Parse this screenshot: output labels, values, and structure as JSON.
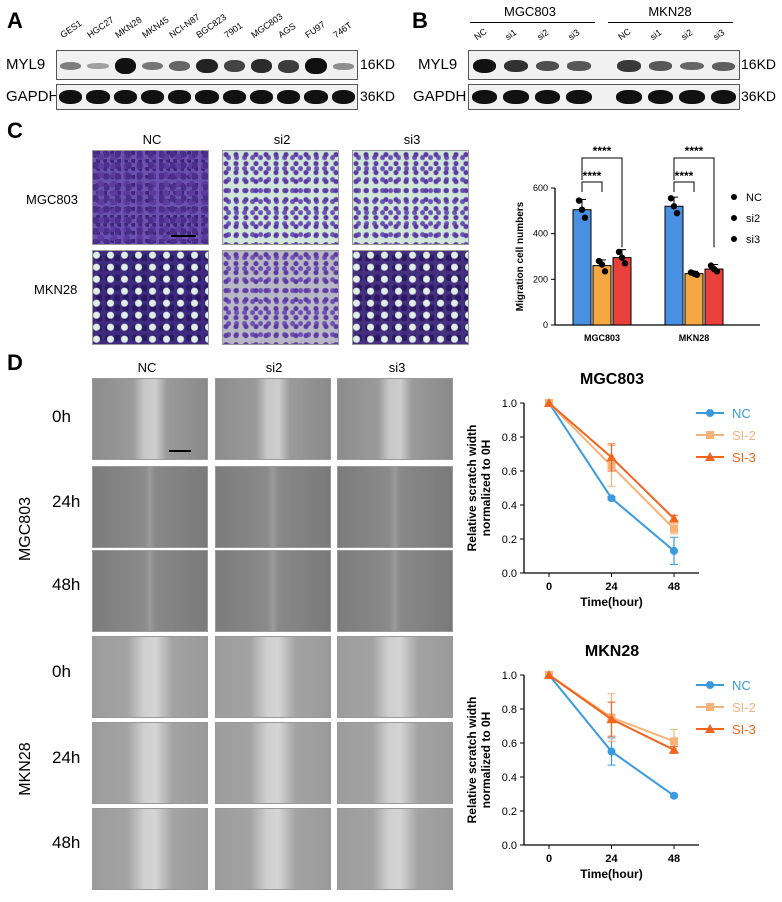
{
  "panels": {
    "a": "A",
    "b": "B",
    "c": "C",
    "d": "D"
  },
  "panel_a": {
    "lanes": [
      "GES1",
      "HGC27",
      "MKN28",
      "MKN45",
      "NCI-N87",
      "BGC823",
      "7901",
      "MGC803",
      "AGS",
      "FU97",
      "746T"
    ],
    "rows": [
      "MYL9",
      "GAPDH"
    ],
    "sizes": [
      "16KD",
      "36KD"
    ],
    "myl9_levels": [
      0.35,
      0.15,
      1.0,
      0.4,
      0.5,
      0.9,
      0.7,
      0.85,
      0.75,
      1.0,
      0.25
    ]
  },
  "panel_b": {
    "groups": [
      "MGC803",
      "MKN28"
    ],
    "lanes": [
      "NC",
      "si1",
      "si2",
      "si3",
      "NC",
      "si1",
      "si2",
      "si3"
    ],
    "rows": [
      "MYL9",
      "GAPDH"
    ],
    "sizes": [
      "16KD",
      "36KD"
    ],
    "myl9_levels": [
      1.0,
      0.8,
      0.6,
      0.55,
      0.75,
      0.55,
      0.45,
      0.5
    ]
  },
  "panel_c": {
    "columns": [
      "NC",
      "si2",
      "si3"
    ],
    "rows": [
      "MGC803",
      "MKN28"
    ]
  },
  "panel_d": {
    "columns": [
      "NC",
      "si2",
      "si3"
    ],
    "timepoints": [
      "0h",
      "24h",
      "48h",
      "0h",
      "24h",
      "48h"
    ],
    "cell_lines": [
      "MGC803",
      "MKN28"
    ]
  },
  "chart_data": [
    {
      "type": "bar",
      "categories": [
        "MGC803",
        "MKN28"
      ],
      "series": [
        {
          "name": "NC",
          "values": [
            505,
            520
          ],
          "error": [
            45,
            40
          ],
          "color": "#4a90e2",
          "points": [
            [
              545,
              505,
              470
            ],
            [
              555,
              520,
              490
            ]
          ]
        },
        {
          "name": "si2",
          "values": [
            260,
            225
          ],
          "error": [
            25,
            10
          ],
          "color": "#f5a742",
          "points": [
            [
              280,
              265,
              235
            ],
            [
              230,
              225,
              220
            ]
          ]
        },
        {
          "name": "si3",
          "values": [
            295,
            245
          ],
          "error": [
            35,
            20
          ],
          "color": "#e8403a",
          "points": [
            [
              320,
              295,
              270
            ],
            [
              260,
              245,
              235
            ]
          ]
        }
      ],
      "ylabel": "Migration cell numbers",
      "ylim": [
        0,
        600
      ],
      "yticks": [
        0,
        200,
        400,
        600
      ],
      "significance": [
        "****",
        "****",
        "****",
        "****"
      ],
      "legend": [
        "NC",
        "si2",
        "si3"
      ]
    },
    {
      "type": "line",
      "title": "MGC803",
      "x": [
        0,
        24,
        48
      ],
      "series": [
        {
          "name": "NC",
          "values": [
            1.0,
            0.44,
            0.13
          ],
          "error": [
            0,
            0.01,
            0.08
          ],
          "color": "#3a9ae0",
          "marker": "circle"
        },
        {
          "name": "SI-2",
          "values": [
            1.0,
            0.63,
            0.26
          ],
          "error": [
            0,
            0.12,
            0.03
          ],
          "color": "#f7b27a",
          "marker": "square"
        },
        {
          "name": "SI-3",
          "values": [
            1.0,
            0.68,
            0.32
          ],
          "error": [
            0,
            0.08,
            0.02
          ],
          "color": "#f0641e",
          "marker": "triangle"
        }
      ],
      "xlabel": "Time(hour)",
      "ylabel": "Relative scratch width normalized to 0H",
      "ylim": [
        0,
        1.0
      ],
      "yticks": [
        0.0,
        0.2,
        0.4,
        0.6,
        0.8,
        1.0
      ]
    },
    {
      "type": "line",
      "title": "MKN28",
      "x": [
        0,
        24,
        48
      ],
      "series": [
        {
          "name": "NC",
          "values": [
            1.0,
            0.55,
            0.29
          ],
          "error": [
            0,
            0.08,
            0.01
          ],
          "color": "#3a9ae0",
          "marker": "circle"
        },
        {
          "name": "SI-2",
          "values": [
            1.0,
            0.75,
            0.61
          ],
          "error": [
            0,
            0.14,
            0.07
          ],
          "color": "#f7b27a",
          "marker": "square"
        },
        {
          "name": "SI-3",
          "values": [
            1.0,
            0.74,
            0.56
          ],
          "error": [
            0,
            0.1,
            0.02
          ],
          "color": "#f0641e",
          "marker": "triangle"
        }
      ],
      "xlabel": "Time(hour)",
      "ylabel": "Relative scratch width normalized to 0H",
      "ylim": [
        0,
        1.0
      ],
      "yticks": [
        0.0,
        0.2,
        0.4,
        0.6,
        0.8,
        1.0
      ]
    }
  ]
}
